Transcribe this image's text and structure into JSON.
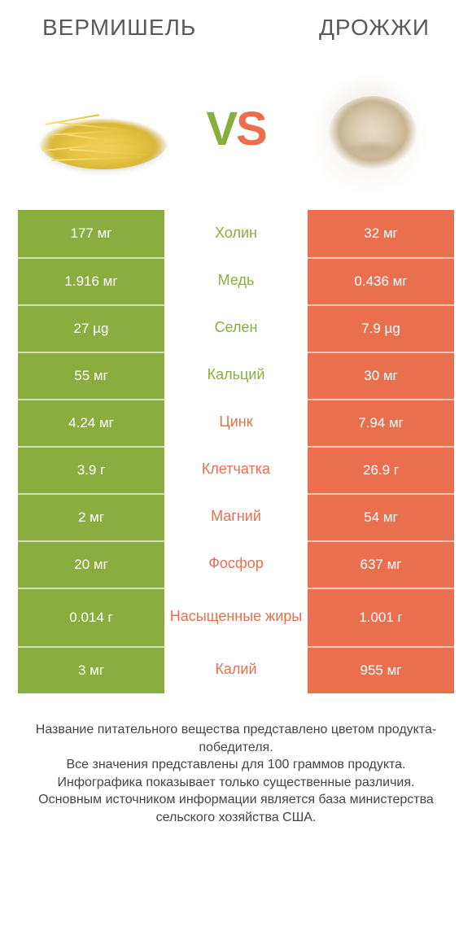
{
  "colors": {
    "green": "#8aad3f",
    "orange": "#e96f4f",
    "row_sep": "rgba(255,255,255,0.6)",
    "mid_bg": "#ffffff",
    "title_text": "#5a5a5a"
  },
  "titles": {
    "left": "ВЕРМИШЕЛЬ",
    "right": "ДРОЖЖИ"
  },
  "vs": {
    "v": "V",
    "s": "S"
  },
  "rows": [
    {
      "label": "Холин",
      "left": "177 мг",
      "right": "32 мг",
      "winner": "left"
    },
    {
      "label": "Медь",
      "left": "1.916 мг",
      "right": "0.436 мг",
      "winner": "left"
    },
    {
      "label": "Селен",
      "left": "27 µg",
      "right": "7.9 µg",
      "winner": "left"
    },
    {
      "label": "Кальций",
      "left": "55 мг",
      "right": "30 мг",
      "winner": "left"
    },
    {
      "label": "Цинк",
      "left": "4.24 мг",
      "right": "7.94 мг",
      "winner": "right"
    },
    {
      "label": "Клетчатка",
      "left": "3.9 г",
      "right": "26.9 г",
      "winner": "right"
    },
    {
      "label": "Магний",
      "left": "2 мг",
      "right": "54 мг",
      "winner": "right"
    },
    {
      "label": "Фосфор",
      "left": "20 мг",
      "right": "637 мг",
      "winner": "right"
    },
    {
      "label": "Насыщенные жиры",
      "left": "0.014 г",
      "right": "1.001 г",
      "winner": "right",
      "tall": true
    },
    {
      "label": "Калий",
      "left": "3 мг",
      "right": "955 мг",
      "winner": "right"
    }
  ],
  "note": "Название питательного вещества представлено цветом продукта-победителя.\nВсе значения представлены для 100 граммов продукта.\nИнфографика показывает только существенные различия.\nОсновным источником информации является база министерства сельского хозяйства США."
}
